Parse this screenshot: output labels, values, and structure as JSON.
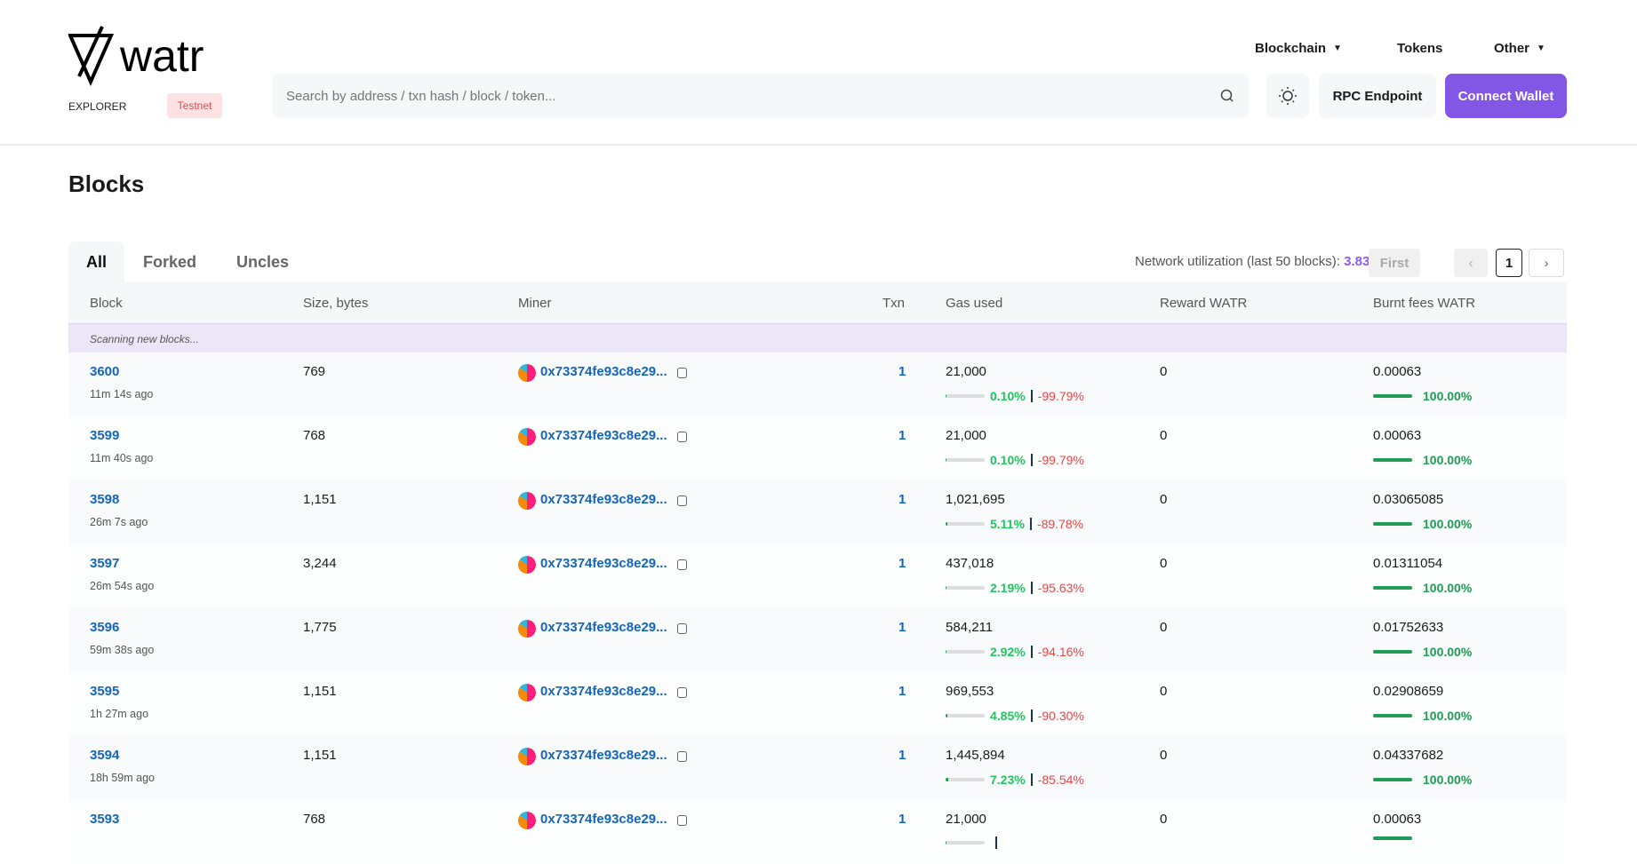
{
  "header": {
    "logo_text": "watr",
    "explorer_label": "EXPLORER",
    "network_badge": "Testnet",
    "search_placeholder": "Search by address / txn hash / block / token...",
    "nav": [
      {
        "label": "Blockchain"
      },
      {
        "label": "Tokens"
      },
      {
        "label": "Other"
      }
    ],
    "rpc_label": "RPC Endpoint",
    "connect_label": "Connect Wallet",
    "accent": "#8257e6"
  },
  "page": {
    "title": "Blocks"
  },
  "tabs": [
    {
      "label": "All",
      "active": true
    },
    {
      "label": "Forked"
    },
    {
      "label": "Uncles"
    }
  ],
  "utilization": {
    "label": "Network utilization (last 50 blocks):",
    "value": "3.83%"
  },
  "pagination": {
    "first": "First",
    "prev": "‹",
    "page": "1",
    "next": "›"
  },
  "table": {
    "columns": [
      "Block",
      "Size, bytes",
      "Miner",
      "Txn",
      "Gas used",
      "Reward WATR",
      "Burnt fees WATR"
    ],
    "scanning": "Scanning new blocks...",
    "rows": [
      {
        "block": "3600",
        "age": "11m 14s ago",
        "size": "769",
        "miner": "0x73374fe93c8e29...",
        "txn": "1",
        "gas": "21,000",
        "gas_pct": "0.10%",
        "gas_target": "-99.79%",
        "gas_fill": 0.1,
        "reward": "0",
        "burnt": "0.00063",
        "burnt_pct": "100.00%"
      },
      {
        "block": "3599",
        "age": "11m 40s ago",
        "size": "768",
        "miner": "0x73374fe93c8e29...",
        "txn": "1",
        "gas": "21,000",
        "gas_pct": "0.10%",
        "gas_target": "-99.79%",
        "gas_fill": 0.1,
        "reward": "0",
        "burnt": "0.00063",
        "burnt_pct": "100.00%"
      },
      {
        "block": "3598",
        "age": "26m 7s ago",
        "size": "1,151",
        "miner": "0x73374fe93c8e29...",
        "txn": "1",
        "gas": "1,021,695",
        "gas_pct": "5.11%",
        "gas_target": "-89.78%",
        "gas_fill": 5.11,
        "reward": "0",
        "burnt": "0.03065085",
        "burnt_pct": "100.00%"
      },
      {
        "block": "3597",
        "age": "26m 54s ago",
        "size": "3,244",
        "miner": "0x73374fe93c8e29...",
        "txn": "1",
        "gas": "437,018",
        "gas_pct": "2.19%",
        "gas_target": "-95.63%",
        "gas_fill": 2.19,
        "reward": "0",
        "burnt": "0.01311054",
        "burnt_pct": "100.00%"
      },
      {
        "block": "3596",
        "age": "59m 38s ago",
        "size": "1,775",
        "miner": "0x73374fe93c8e29...",
        "txn": "1",
        "gas": "584,211",
        "gas_pct": "2.92%",
        "gas_target": "-94.16%",
        "gas_fill": 2.92,
        "reward": "0",
        "burnt": "0.01752633",
        "burnt_pct": "100.00%"
      },
      {
        "block": "3595",
        "age": "1h 27m ago",
        "size": "1,151",
        "miner": "0x73374fe93c8e29...",
        "txn": "1",
        "gas": "969,553",
        "gas_pct": "4.85%",
        "gas_target": "-90.30%",
        "gas_fill": 4.85,
        "reward": "0",
        "burnt": "0.02908659",
        "burnt_pct": "100.00%"
      },
      {
        "block": "3594",
        "age": "18h 59m ago",
        "size": "1,151",
        "miner": "0x73374fe93c8e29...",
        "txn": "1",
        "gas": "1,445,894",
        "gas_pct": "7.23%",
        "gas_target": "-85.54%",
        "gas_fill": 7.23,
        "reward": "0",
        "burnt": "0.04337682",
        "burnt_pct": "100.00%"
      },
      {
        "block": "3593",
        "age": "",
        "size": "768",
        "miner": "0x73374fe93c8e29...",
        "txn": "1",
        "gas": "21,000",
        "gas_pct": "",
        "gas_target": "",
        "gas_fill": 0.1,
        "reward": "0",
        "burnt": "0.00063",
        "burnt_pct": ""
      }
    ]
  }
}
